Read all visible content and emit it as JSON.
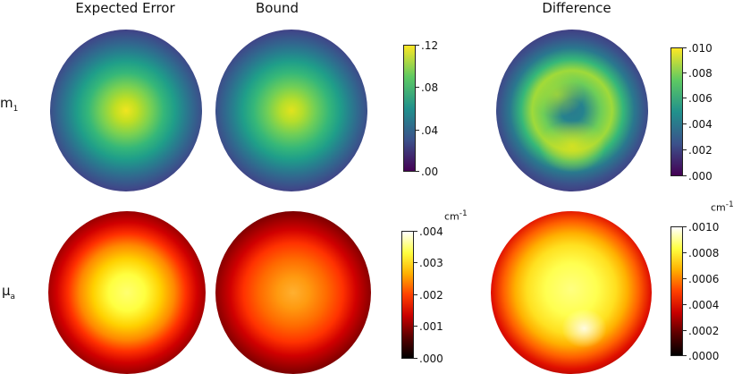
{
  "columns": [
    "Expected Error",
    "Bound",
    "Difference"
  ],
  "rows": [
    {
      "symbol": "m",
      "subscript": "1"
    },
    {
      "symbol": "μ",
      "subscript": "a"
    }
  ],
  "colorbars": {
    "m1_value": {
      "colormap": "viridis",
      "ticks": [
        ".12",
        ".08",
        ".04",
        ".00"
      ],
      "unit": ""
    },
    "m1_difference": {
      "colormap": "viridis",
      "ticks": [
        ".010",
        ".008",
        ".006",
        ".004",
        ".002",
        ".000"
      ],
      "unit": ""
    },
    "mua_value": {
      "colormap": "hot",
      "ticks": [
        ".004",
        ".003",
        ".002",
        ".001",
        ".000"
      ],
      "unit": "cm",
      "unit_exp": "-1"
    },
    "mua_difference": {
      "colormap": "hot",
      "ticks": [
        ".0010",
        ".0008",
        ".0006",
        ".0004",
        ".0002",
        ".0000"
      ],
      "unit": "cm",
      "unit_exp": "-1"
    }
  }
}
